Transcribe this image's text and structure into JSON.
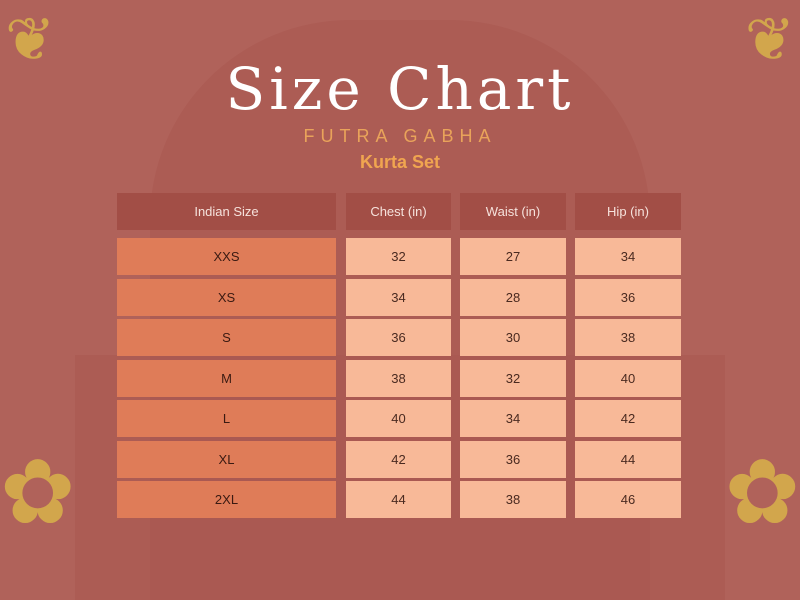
{
  "title": "Size Chart",
  "brand": "FUTRA GABHA",
  "product": "Kurta Set",
  "colors": {
    "background": "#b0625a",
    "header": "#a24e46",
    "size_cell": "#df7c58",
    "value_cell": "#f8b998",
    "accent": "#e9a35a"
  },
  "table": {
    "headers": [
      "Indian Size",
      "Chest (in)",
      "Waist (in)",
      "Hip (in)"
    ],
    "rows": [
      [
        "XXS",
        "32",
        "27",
        "34"
      ],
      [
        "XS",
        "34",
        "28",
        "36"
      ],
      [
        "S",
        "36",
        "30",
        "38"
      ],
      [
        "M",
        "38",
        "32",
        "40"
      ],
      [
        "L",
        "40",
        "34",
        "42"
      ],
      [
        "XL",
        "42",
        "36",
        "44"
      ],
      [
        "2XL",
        "44",
        "38",
        "46"
      ]
    ]
  }
}
